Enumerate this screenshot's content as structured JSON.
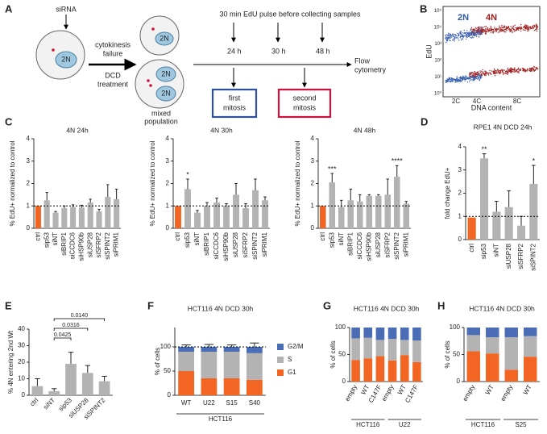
{
  "panel_labels": [
    "A",
    "B",
    "C",
    "D",
    "E",
    "F",
    "G",
    "H"
  ],
  "schematic": {
    "sirna": "siRNA",
    "cell_2n": "2N",
    "cytokinesis": [
      "cytokinesis",
      "failure"
    ],
    "treatment": [
      "DCD",
      "treatment"
    ],
    "daughter_2n": [
      "2N",
      "2N",
      "2N"
    ],
    "mixed": [
      "mixed",
      "population"
    ],
    "pulse": "30 min EdU pulse before collecting samples",
    "times": [
      "24 h",
      "30 h",
      "48 h"
    ],
    "flow": [
      "Flow",
      "cytometry"
    ],
    "first": [
      "first",
      "mitosis"
    ],
    "second": [
      "second",
      "mitosis"
    ]
  },
  "flow_plot": {
    "ylabel": "EdU",
    "xlabel": "DNA content",
    "x_tick_labels": [
      "2C",
      "4C",
      "8C"
    ],
    "y_tick_labels": [
      "10⁰",
      "10¹",
      "10²",
      "10³",
      "10⁴",
      "10⁵"
    ],
    "gate_labels": [
      "2N",
      "4N"
    ]
  },
  "chart_data": [
    {
      "type": "bar",
      "title": "4N 24h",
      "ylabel": "% EdU+ normalized to control",
      "categories": [
        "ctrl",
        "sip53",
        "siNT",
        "siBRIP1",
        "siCCDC6",
        "siHSP90b",
        "siUSP28",
        "siSFRP2",
        "siSPINT2",
        "siPRIM1"
      ],
      "values": [
        1,
        1.25,
        0.7,
        0.9,
        0.95,
        0.93,
        1.15,
        0.75,
        1.4,
        1.3
      ],
      "errors": [
        null,
        0.35,
        0.05,
        0.1,
        0.1,
        0.1,
        0.15,
        0.1,
        0.55,
        0.45
      ],
      "colors": [
        "#f26522",
        "#b3b3b3",
        "#b3b3b3",
        "#b3b3b3",
        "#b3b3b3",
        "#b3b3b3",
        "#b3b3b3",
        "#b3b3b3",
        "#b3b3b3",
        "#b3b3b3"
      ],
      "ylim": [
        0,
        4
      ],
      "yticks": [
        0,
        1,
        2,
        3,
        4
      ],
      "reference_line": 1
    },
    {
      "type": "bar",
      "title": "4N 30h",
      "ylabel": "% EdU+ normalized to control",
      "categories": [
        "ctrl",
        "sip53",
        "siNT",
        "siBRIP1",
        "siCCDC6",
        "siHSP90b",
        "siUSP28",
        "siSFRP2",
        "siSPINT2",
        "siPRIM1"
      ],
      "values": [
        1,
        1.75,
        0.7,
        1.0,
        1.15,
        1.0,
        1.5,
        0.9,
        1.7,
        1.25
      ],
      "errors": [
        null,
        0.45,
        0.1,
        0.15,
        0.2,
        0.1,
        0.5,
        0.2,
        0.5,
        0.15
      ],
      "significance": [
        null,
        "*",
        null,
        null,
        null,
        null,
        null,
        null,
        null,
        null
      ],
      "colors": [
        "#f26522",
        "#b3b3b3",
        "#b3b3b3",
        "#b3b3b3",
        "#b3b3b3",
        "#b3b3b3",
        "#b3b3b3",
        "#b3b3b3",
        "#b3b3b3",
        "#b3b3b3"
      ],
      "ylim": [
        0,
        4
      ],
      "yticks": [
        0,
        1,
        2,
        3,
        4
      ],
      "reference_line": 1
    },
    {
      "type": "bar",
      "title": "4N 48h",
      "ylabel": "% EdU+ normalized to control",
      "categories": [
        "ctrl",
        "sip53",
        "siNT",
        "siBRIP1",
        "siCCDC6",
        "siHSP90b",
        "siUSP28",
        "siSFRP2",
        "siSPINT2",
        "siPRIM1"
      ],
      "values": [
        1,
        2.05,
        0.95,
        1.25,
        1.2,
        1.45,
        1.45,
        1.5,
        2.3,
        1.1
      ],
      "errors": [
        null,
        0.4,
        0.3,
        0.5,
        0.3,
        0.05,
        0.05,
        0.7,
        0.5,
        0.1
      ],
      "significance": [
        null,
        "***",
        null,
        null,
        null,
        null,
        null,
        null,
        "****",
        null
      ],
      "colors": [
        "#f26522",
        "#b3b3b3",
        "#b3b3b3",
        "#b3b3b3",
        "#b3b3b3",
        "#b3b3b3",
        "#b3b3b3",
        "#b3b3b3",
        "#b3b3b3",
        "#b3b3b3"
      ],
      "ylim": [
        0,
        4
      ],
      "yticks": [
        0,
        1,
        2,
        3,
        4
      ],
      "reference_line": 1
    },
    {
      "type": "bar",
      "title": "RPE1 4N DCD 24h",
      "ylabel": "fold change EdU+",
      "categories": [
        "ctrl",
        "sip53",
        "siNT",
        "siUSP28",
        "siSFRP2",
        "siSPINT2"
      ],
      "values": [
        0.95,
        3.5,
        1.2,
        1.4,
        0.6,
        2.4
      ],
      "errors": [
        null,
        0.2,
        0.45,
        0.7,
        0.4,
        0.8
      ],
      "significance": [
        null,
        "**",
        null,
        null,
        null,
        "*"
      ],
      "colors": [
        "#f26522",
        "#b3b3b3",
        "#b3b3b3",
        "#b3b3b3",
        "#b3b3b3",
        "#b3b3b3"
      ],
      "ylim": [
        0,
        4
      ],
      "yticks": [
        0,
        1,
        2,
        3,
        4
      ],
      "reference_line": 1
    },
    {
      "type": "bar",
      "ylabel": "% 4N entering 2nd Wt",
      "categories": [
        "ctrl",
        "siNT",
        "sip53",
        "siUSP28",
        "siSPINT2"
      ],
      "values": [
        5.5,
        2.5,
        19,
        13.5,
        8.5
      ],
      "errors": [
        4.5,
        1.5,
        7,
        4.5,
        3
      ],
      "color": "#b3b3b3",
      "comparisons": [
        {
          "from": "siNT",
          "to": "sip53",
          "label": "0.0425"
        },
        {
          "from": "siNT",
          "to": "siUSP28",
          "label": "0.0316"
        },
        {
          "from": "siNT",
          "to": "siSPINT2",
          "label": "0.0140"
        }
      ],
      "ylim": [
        0,
        40
      ],
      "yticks": [
        0,
        10,
        20,
        30,
        40
      ]
    },
    {
      "type": "stacked_bar",
      "title": "HCT116 4N DCD 30h",
      "ylabel": "% of cells",
      "categories": [
        "WT",
        "U22",
        "S15",
        "S40"
      ],
      "groups": [
        "HCT116",
        "HCT116",
        "HCT116",
        "HCT116"
      ],
      "series": [
        {
          "name": "G1",
          "color": "#f26522",
          "values": [
            50,
            35,
            35,
            32
          ],
          "errors": [
            3,
            8,
            2,
            8
          ]
        },
        {
          "name": "S",
          "color": "#b3b3b3",
          "values": [
            40,
            55,
            55,
            55
          ],
          "errors": [
            5,
            5,
            5,
            5
          ]
        },
        {
          "name": "G2/M",
          "color": "#4a6db5",
          "values": [
            10,
            10,
            10,
            13
          ],
          "errors": [
            4,
            5,
            4,
            8
          ]
        }
      ],
      "ylim": [
        0,
        140
      ],
      "yticks": [
        0,
        50,
        100
      ],
      "reference_line": 100,
      "legend": "right"
    },
    {
      "type": "stacked_bar",
      "title": "HCT116 4N DCD 30h",
      "ylabel": "% of cells",
      "categories": [
        "empty",
        "WT",
        "C147F",
        "empty",
        "WT",
        "C147F"
      ],
      "groups": [
        "HCT116",
        "HCT116",
        "HCT116",
        "U22",
        "U22",
        "U22"
      ],
      "series": [
        {
          "name": "G1",
          "color": "#f26522",
          "values": [
            40,
            43,
            47,
            39,
            49,
            36
          ]
        },
        {
          "name": "S",
          "color": "#b3b3b3",
          "values": [
            40,
            38,
            30,
            40,
            28,
            40
          ]
        },
        {
          "name": "G2/M",
          "color": "#4a6db5",
          "values": [
            20,
            19,
            23,
            21,
            23,
            24
          ]
        }
      ],
      "ylim": [
        0,
        100
      ],
      "yticks": [
        0,
        50,
        100
      ]
    },
    {
      "type": "stacked_bar",
      "title": "HCT116 4N DCD 30h",
      "ylabel": "% of cells",
      "categories": [
        "empty",
        "WT",
        "empty",
        "WT"
      ],
      "groups": [
        "HCT116",
        "HCT116",
        "S25",
        "S25"
      ],
      "series": [
        {
          "name": "G1",
          "color": "#f26522",
          "values": [
            56,
            52,
            22,
            46
          ]
        },
        {
          "name": "S",
          "color": "#b3b3b3",
          "values": [
            30,
            30,
            60,
            38
          ]
        },
        {
          "name": "G2/M",
          "color": "#4a6db5",
          "values": [
            14,
            18,
            18,
            16
          ]
        }
      ],
      "ylim": [
        0,
        100
      ],
      "yticks": [
        0,
        50,
        100
      ]
    }
  ]
}
